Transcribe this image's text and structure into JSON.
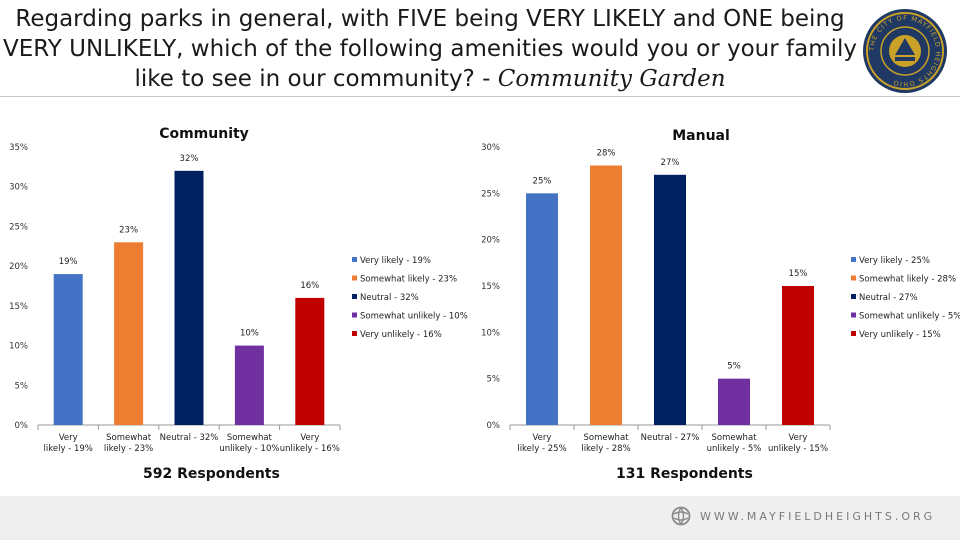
{
  "header": {
    "title_main": "Regarding parks in general, with FIVE being VERY LIKELY and ONE being VERY UNLIKELY, which of the following amenities would you or your family like to see in our community? -",
    "title_emphasis": "Community Garden",
    "seal_text": "THE CITY OF MAYFIELD HEIGHTS OHIO"
  },
  "footer": {
    "url": "WWW.MAYFIELDHEIGHTS.ORG"
  },
  "colors": {
    "very_likely": "#4472c4",
    "somewhat_likely": "#ed7d31",
    "neutral": "#002060",
    "somewhat_unlikely": "#7030a0",
    "very_unlikely": "#c00000",
    "seal_blue": "#1f3864",
    "seal_gold": "#c9a227"
  },
  "chart_data": [
    {
      "type": "bar",
      "title": "Community",
      "categories": [
        "Very likely - 19%",
        "Somewhat likely - 23%",
        "Neutral - 32%",
        "Somewhat unlikely - 10%",
        "Very unlikely - 16%"
      ],
      "values": [
        19,
        23,
        32,
        10,
        16
      ],
      "data_labels": [
        "19%",
        "23%",
        "32%",
        "10%",
        "16%"
      ],
      "ylim": [
        0,
        35
      ],
      "yticks": [
        "0%",
        "5%",
        "10%",
        "15%",
        "20%",
        "25%",
        "30%",
        "35%"
      ],
      "legend": [
        "Very likely - 19%",
        "Somewhat likely - 23%",
        "Neutral - 32%",
        "Somewhat unlikely - 10%",
        "Very unlikely - 16%"
      ],
      "legend_position": "right",
      "grid": false,
      "respondents": "592 Respondents"
    },
    {
      "type": "bar",
      "title": "Manual",
      "categories": [
        "Very likely - 25%",
        "Somewhat likely - 28%",
        "Neutral - 27%",
        "Somewhat unlikely - 5%",
        "Very unlikely - 15%"
      ],
      "values": [
        25,
        28,
        27,
        5,
        15
      ],
      "data_labels": [
        "25%",
        "28%",
        "27%",
        "5%",
        "15%"
      ],
      "ylim": [
        0,
        30
      ],
      "yticks": [
        "0%",
        "5%",
        "10%",
        "15%",
        "20%",
        "25%",
        "30%"
      ],
      "legend": [
        "Very likely - 25%",
        "Somewhat likely - 28%",
        "Neutral - 27%",
        "Somewhat unlikely - 5%",
        "Very unlikely - 15%"
      ],
      "legend_position": "right",
      "grid": false,
      "respondents": "131 Respondents"
    }
  ]
}
